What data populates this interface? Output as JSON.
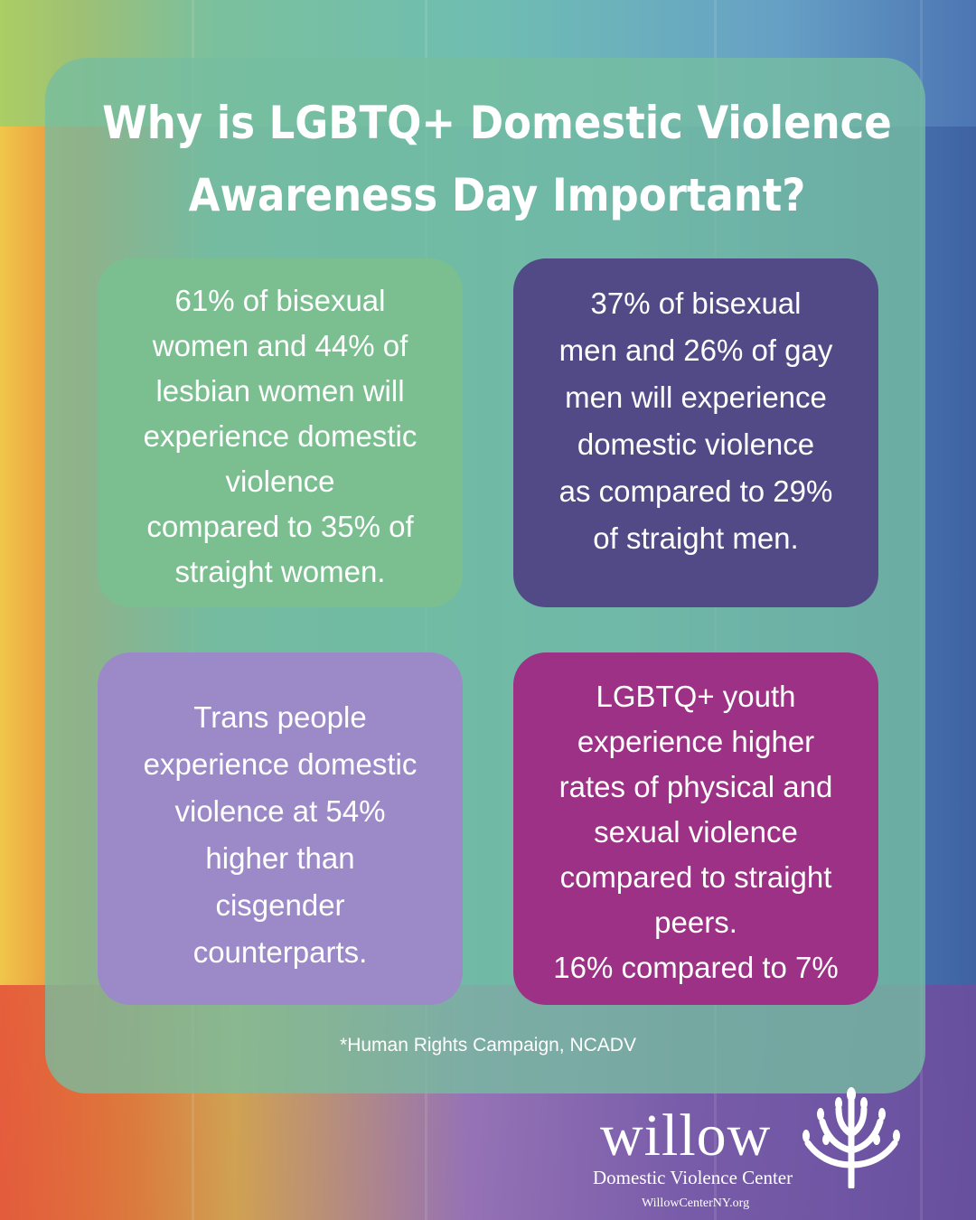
{
  "title": {
    "line1": "Why is LGBTQ+ Domestic Violence",
    "line2": "Awareness Day Important?"
  },
  "cards": [
    {
      "color": "#7bbf91",
      "lines": [
        "61% of bisexual",
        "women and 44% of",
        "lesbian women will",
        "experience domestic",
        "violence",
        " compared to 35% of",
        "straight women."
      ]
    },
    {
      "color": "#514a87",
      "lines": [
        "37% of bisexual",
        "men and 26% of gay",
        "men will experience",
        "domestic violence",
        "as compared to 29%",
        "of straight men."
      ]
    },
    {
      "color": "#9c8ac8",
      "lines": [
        "Trans people",
        "experience domestic",
        "violence at 54%",
        "higher than",
        "cisgender",
        "counterparts."
      ]
    },
    {
      "color": "#9c3185",
      "lines": [
        "LGBTQ+ youth",
        "experience higher",
        "rates of physical and",
        "sexual violence",
        "compared to straight",
        "peers.",
        "16% compared to 7%"
      ]
    }
  ],
  "source": "*Human Rights Campaign, NCADV",
  "logo": {
    "wordmark": "willow",
    "subtitle": "Domestic Violence Center",
    "url": "WillowCenterNY.org",
    "icon": "willow-tree-icon"
  }
}
